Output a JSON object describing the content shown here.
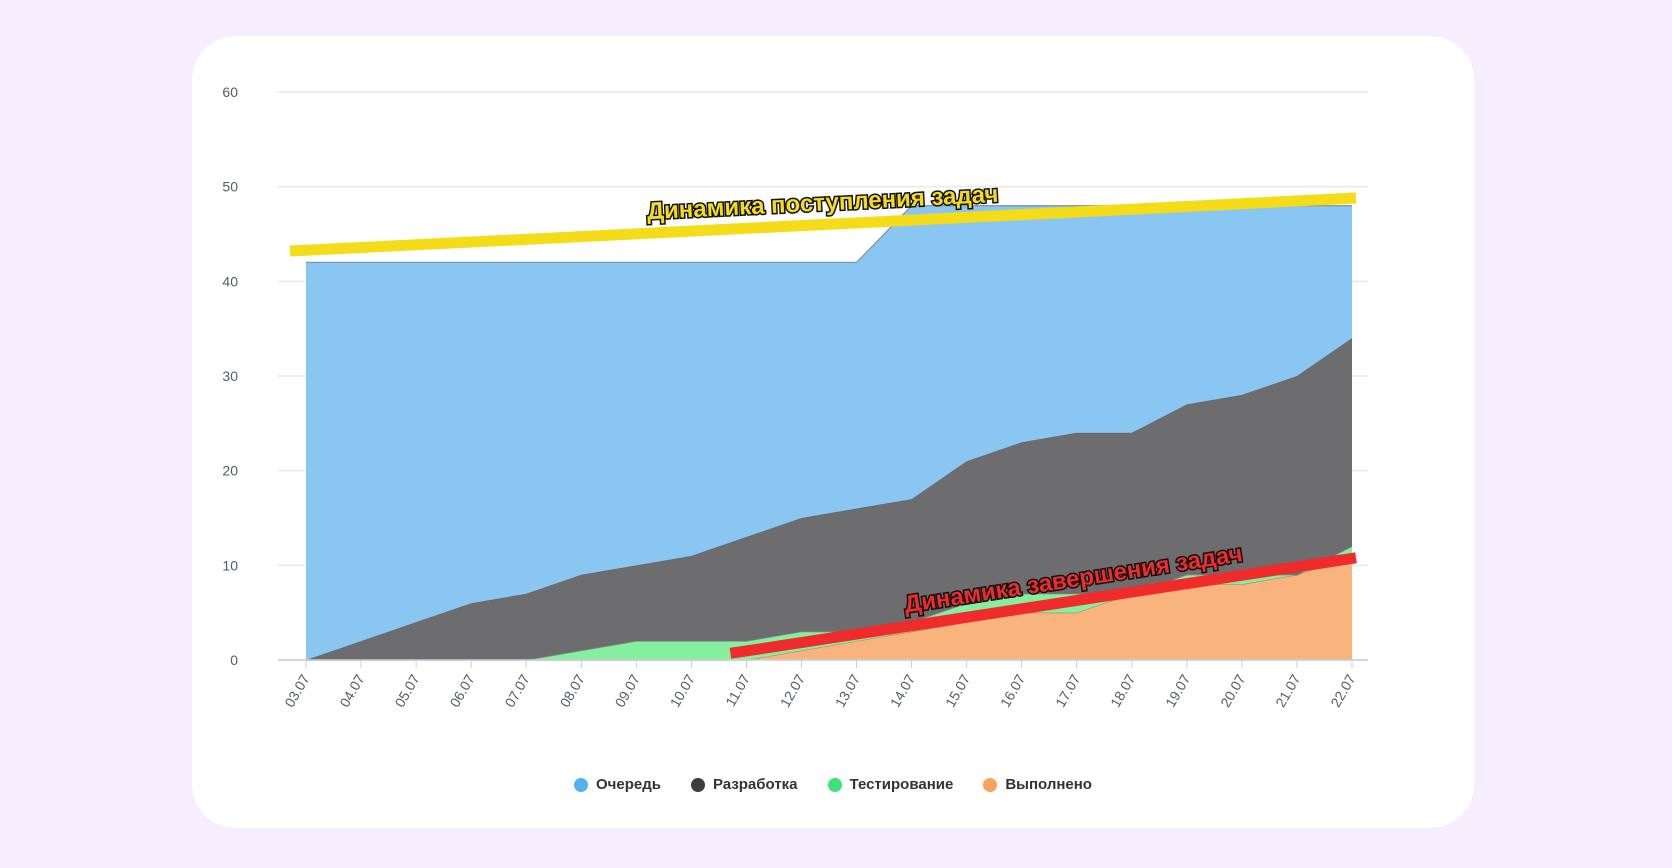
{
  "chart_data": {
    "type": "area",
    "stacked": true,
    "categories": [
      "03.07",
      "04.07",
      "05.07",
      "06.07",
      "07.07",
      "08.07",
      "09.07",
      "10.07",
      "11.07",
      "12.07",
      "13.07",
      "14.07",
      "15.07",
      "16.07",
      "17.07",
      "18.07",
      "19.07",
      "20.07",
      "21.07",
      "22.07"
    ],
    "ylim": [
      0,
      60
    ],
    "yticks": [
      0,
      10,
      20,
      30,
      40,
      50,
      60
    ],
    "grid": true,
    "legend_position": "bottom",
    "series": [
      {
        "name": "Выполнено",
        "color": "#f9b47e",
        "values": [
          0,
          0,
          0,
          0,
          0,
          0,
          0,
          0,
          0,
          1,
          2,
          3,
          4,
          5,
          5,
          7,
          8,
          8,
          9,
          11
        ]
      },
      {
        "name": "Тестирование",
        "color": "#86ef9f",
        "values": [
          0,
          0,
          0,
          0,
          0,
          1,
          2,
          2,
          2,
          2,
          1,
          1,
          2,
          2,
          2,
          0,
          1,
          1,
          0,
          1
        ]
      },
      {
        "name": "Разработка",
        "color": "#6d6d6f",
        "values": [
          0,
          2,
          4,
          6,
          7,
          8,
          8,
          9,
          11,
          12,
          13,
          13,
          15,
          16,
          17,
          17,
          18,
          19,
          21,
          22
        ]
      },
      {
        "name": "Очередь",
        "color": "#89c6f1",
        "values": [
          42,
          40,
          38,
          36,
          35,
          33,
          32,
          31,
          29,
          27,
          26,
          31,
          27,
          25,
          24,
          24,
          21,
          20,
          18,
          14
        ]
      }
    ],
    "legend_order": [
      "Очередь",
      "Разработка",
      "Тестирование",
      "Выполнено"
    ],
    "annotations": [
      {
        "text": "Динамика поступления задач",
        "color": "#f5dc19",
        "from": [
          "03.07",
          43.2
        ],
        "to": [
          "22.07",
          48.8
        ]
      },
      {
        "text": "Динамика завершения задач",
        "color": "#ef2b2b",
        "from": [
          "11.07",
          0.7
        ],
        "to": [
          "22.07",
          10.8
        ]
      }
    ]
  }
}
